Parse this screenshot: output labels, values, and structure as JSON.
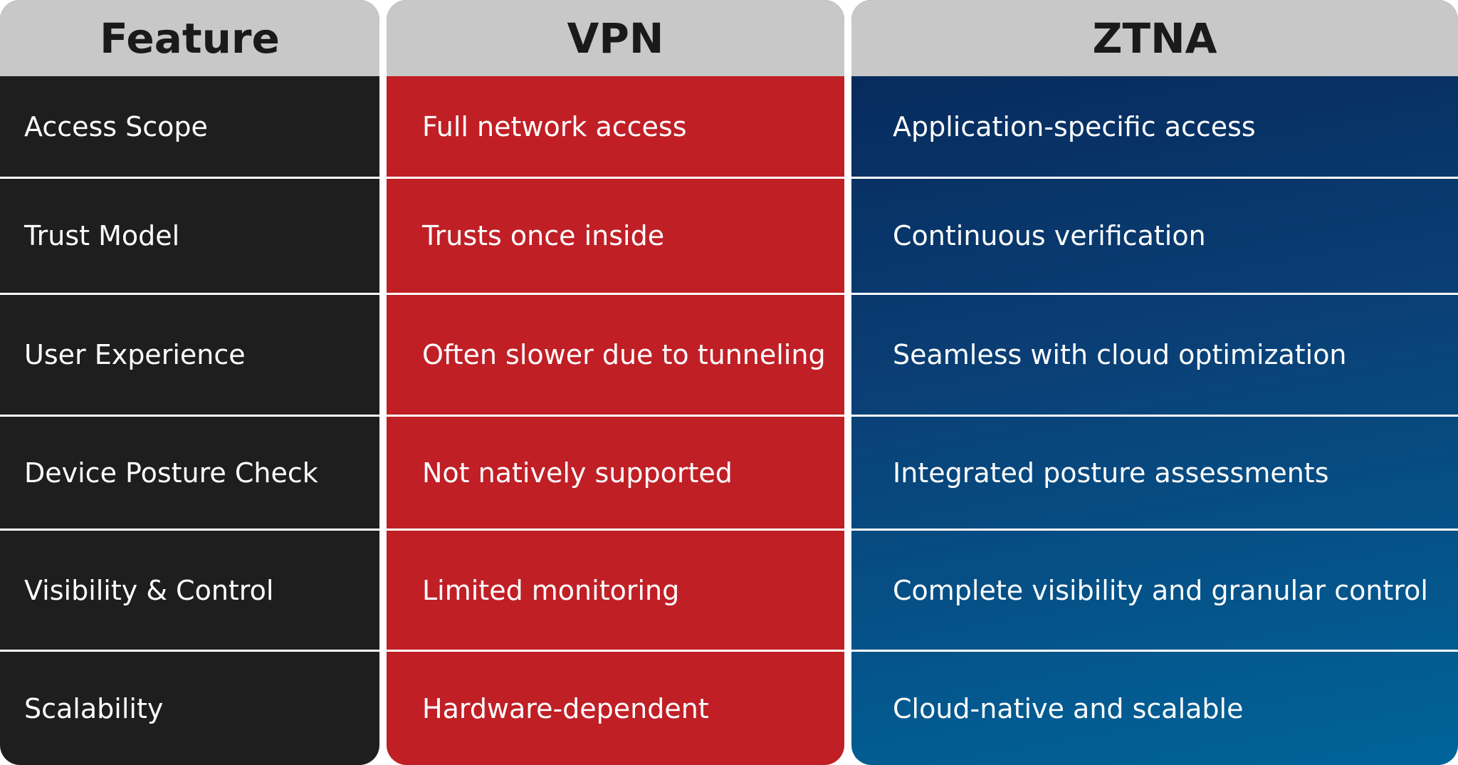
{
  "header": {
    "columns": [
      "Feature",
      "VPN",
      "ZTNA"
    ]
  },
  "table": {
    "rows": [
      [
        "Access Scope",
        "Full network access",
        "Application-specific access"
      ],
      [
        "Trust Model",
        "Trusts once inside",
        "Continuous verification"
      ],
      [
        "User Experience",
        "Often slower due to tunneling",
        "Seamless with cloud optimization"
      ],
      [
        "Device Posture Check",
        "Not natively supported",
        "Integrated posture assessments"
      ],
      [
        "Visibility & Control",
        "Limited monitoring",
        "Complete visibility and granular control"
      ],
      [
        "Scalability",
        "Hardware-dependent",
        "Cloud-native and scalable"
      ]
    ]
  }
}
